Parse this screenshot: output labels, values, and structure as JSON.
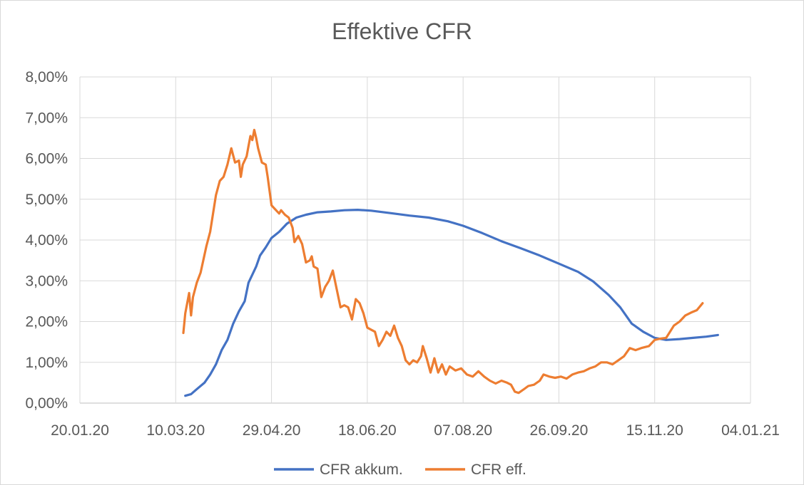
{
  "chart_data": {
    "type": "line",
    "title": "Effektive CFR",
    "xlabel": "",
    "ylabel": "",
    "x_tick_labels": [
      "20.01.20",
      "10.03.20",
      "29.04.20",
      "18.06.20",
      "07.08.20",
      "26.09.20",
      "15.11.20",
      "04.01.21"
    ],
    "x_ticks": [
      "2020-01-20",
      "2020-03-10",
      "2020-04-29",
      "2020-06-18",
      "2020-08-07",
      "2020-09-26",
      "2020-11-15",
      "2021-01-04"
    ],
    "y_tick_labels": [
      "0,00%",
      "1,00%",
      "2,00%",
      "3,00%",
      "4,00%",
      "5,00%",
      "6,00%",
      "7,00%",
      "8,00%"
    ],
    "ylim": [
      0,
      8
    ],
    "y_unit": "%",
    "grid": true,
    "legend_position": "bottom",
    "series": [
      {
        "name": "CFR akkum.",
        "color": "#4472C4",
        "points": [
          [
            "2020-03-15",
            0.18
          ],
          [
            "2020-03-18",
            0.22
          ],
          [
            "2020-03-20",
            0.3
          ],
          [
            "2020-03-22",
            0.38
          ],
          [
            "2020-03-25",
            0.5
          ],
          [
            "2020-03-28",
            0.7
          ],
          [
            "2020-03-31",
            0.95
          ],
          [
            "2020-04-03",
            1.3
          ],
          [
            "2020-04-06",
            1.55
          ],
          [
            "2020-04-09",
            1.95
          ],
          [
            "2020-04-12",
            2.25
          ],
          [
            "2020-04-15",
            2.5
          ],
          [
            "2020-04-17",
            2.95
          ],
          [
            "2020-04-19",
            3.15
          ],
          [
            "2020-04-21",
            3.35
          ],
          [
            "2020-04-23",
            3.62
          ],
          [
            "2020-04-26",
            3.82
          ],
          [
            "2020-04-29",
            4.05
          ],
          [
            "2020-05-03",
            4.2
          ],
          [
            "2020-05-07",
            4.4
          ],
          [
            "2020-05-12",
            4.55
          ],
          [
            "2020-05-17",
            4.62
          ],
          [
            "2020-05-23",
            4.68
          ],
          [
            "2020-05-30",
            4.7
          ],
          [
            "2020-06-06",
            4.73
          ],
          [
            "2020-06-13",
            4.74
          ],
          [
            "2020-06-20",
            4.72
          ],
          [
            "2020-06-30",
            4.66
          ],
          [
            "2020-07-10",
            4.6
          ],
          [
            "2020-07-20",
            4.55
          ],
          [
            "2020-07-30",
            4.46
          ],
          [
            "2020-08-07",
            4.35
          ],
          [
            "2020-08-17",
            4.17
          ],
          [
            "2020-08-27",
            3.97
          ],
          [
            "2020-09-06",
            3.8
          ],
          [
            "2020-09-16",
            3.62
          ],
          [
            "2020-09-26",
            3.42
          ],
          [
            "2020-10-06",
            3.22
          ],
          [
            "2020-10-14",
            2.98
          ],
          [
            "2020-10-22",
            2.65
          ],
          [
            "2020-10-28",
            2.35
          ],
          [
            "2020-11-03",
            1.95
          ],
          [
            "2020-11-09",
            1.75
          ],
          [
            "2020-11-15",
            1.6
          ],
          [
            "2020-11-21",
            1.55
          ],
          [
            "2020-11-28",
            1.57
          ],
          [
            "2020-12-05",
            1.6
          ],
          [
            "2020-12-12",
            1.63
          ],
          [
            "2020-12-18",
            1.67
          ]
        ]
      },
      {
        "name": "CFR eff.",
        "color": "#ED7D31",
        "points": [
          [
            "2020-03-14",
            1.72
          ],
          [
            "2020-03-15",
            2.2
          ],
          [
            "2020-03-17",
            2.7
          ],
          [
            "2020-03-18",
            2.15
          ],
          [
            "2020-03-19",
            2.6
          ],
          [
            "2020-03-21",
            2.95
          ],
          [
            "2020-03-23",
            3.2
          ],
          [
            "2020-03-26",
            3.85
          ],
          [
            "2020-03-28",
            4.2
          ],
          [
            "2020-03-31",
            5.1
          ],
          [
            "2020-04-02",
            5.45
          ],
          [
            "2020-04-04",
            5.55
          ],
          [
            "2020-04-06",
            5.85
          ],
          [
            "2020-04-08",
            6.25
          ],
          [
            "2020-04-10",
            5.9
          ],
          [
            "2020-04-12",
            5.95
          ],
          [
            "2020-04-13",
            5.55
          ],
          [
            "2020-04-14",
            5.85
          ],
          [
            "2020-04-16",
            6.05
          ],
          [
            "2020-04-17",
            6.3
          ],
          [
            "2020-04-18",
            6.55
          ],
          [
            "2020-04-19",
            6.45
          ],
          [
            "2020-04-20",
            6.7
          ],
          [
            "2020-04-21",
            6.5
          ],
          [
            "2020-04-22",
            6.25
          ],
          [
            "2020-04-24",
            5.9
          ],
          [
            "2020-04-26",
            5.85
          ],
          [
            "2020-04-27",
            5.55
          ],
          [
            "2020-04-28",
            5.2
          ],
          [
            "2020-04-29",
            4.85
          ],
          [
            "2020-05-01",
            4.75
          ],
          [
            "2020-05-03",
            4.65
          ],
          [
            "2020-05-04",
            4.73
          ],
          [
            "2020-05-06",
            4.62
          ],
          [
            "2020-05-08",
            4.55
          ],
          [
            "2020-05-10",
            4.3
          ],
          [
            "2020-05-11",
            3.95
          ],
          [
            "2020-05-13",
            4.1
          ],
          [
            "2020-05-15",
            3.9
          ],
          [
            "2020-05-17",
            3.45
          ],
          [
            "2020-05-19",
            3.5
          ],
          [
            "2020-05-20",
            3.6
          ],
          [
            "2020-05-21",
            3.35
          ],
          [
            "2020-05-23",
            3.3
          ],
          [
            "2020-05-25",
            2.6
          ],
          [
            "2020-05-27",
            2.85
          ],
          [
            "2020-05-29",
            3.0
          ],
          [
            "2020-05-31",
            3.25
          ],
          [
            "2020-06-02",
            2.8
          ],
          [
            "2020-06-04",
            2.35
          ],
          [
            "2020-06-06",
            2.4
          ],
          [
            "2020-06-08",
            2.35
          ],
          [
            "2020-06-10",
            2.05
          ],
          [
            "2020-06-12",
            2.55
          ],
          [
            "2020-06-14",
            2.45
          ],
          [
            "2020-06-16",
            2.2
          ],
          [
            "2020-06-18",
            1.85
          ],
          [
            "2020-06-20",
            1.8
          ],
          [
            "2020-06-22",
            1.75
          ],
          [
            "2020-06-24",
            1.4
          ],
          [
            "2020-06-26",
            1.55
          ],
          [
            "2020-06-28",
            1.75
          ],
          [
            "2020-06-30",
            1.65
          ],
          [
            "2020-07-02",
            1.9
          ],
          [
            "2020-07-04",
            1.6
          ],
          [
            "2020-07-06",
            1.4
          ],
          [
            "2020-07-08",
            1.05
          ],
          [
            "2020-07-10",
            0.95
          ],
          [
            "2020-07-12",
            1.05
          ],
          [
            "2020-07-14",
            1.0
          ],
          [
            "2020-07-16",
            1.15
          ],
          [
            "2020-07-17",
            1.4
          ],
          [
            "2020-07-19",
            1.1
          ],
          [
            "2020-07-21",
            0.75
          ],
          [
            "2020-07-23",
            1.1
          ],
          [
            "2020-07-25",
            0.75
          ],
          [
            "2020-07-27",
            0.95
          ],
          [
            "2020-07-29",
            0.7
          ],
          [
            "2020-07-31",
            0.9
          ],
          [
            "2020-08-03",
            0.8
          ],
          [
            "2020-08-06",
            0.85
          ],
          [
            "2020-08-09",
            0.7
          ],
          [
            "2020-08-12",
            0.65
          ],
          [
            "2020-08-15",
            0.78
          ],
          [
            "2020-08-18",
            0.65
          ],
          [
            "2020-08-21",
            0.55
          ],
          [
            "2020-08-24",
            0.48
          ],
          [
            "2020-08-27",
            0.55
          ],
          [
            "2020-08-30",
            0.5
          ],
          [
            "2020-09-01",
            0.45
          ],
          [
            "2020-09-03",
            0.28
          ],
          [
            "2020-09-05",
            0.25
          ],
          [
            "2020-09-08",
            0.35
          ],
          [
            "2020-09-10",
            0.42
          ],
          [
            "2020-09-13",
            0.45
          ],
          [
            "2020-09-16",
            0.55
          ],
          [
            "2020-09-18",
            0.7
          ],
          [
            "2020-09-21",
            0.65
          ],
          [
            "2020-09-24",
            0.62
          ],
          [
            "2020-09-27",
            0.65
          ],
          [
            "2020-09-30",
            0.6
          ],
          [
            "2020-10-03",
            0.7
          ],
          [
            "2020-10-06",
            0.75
          ],
          [
            "2020-10-09",
            0.78
          ],
          [
            "2020-10-12",
            0.85
          ],
          [
            "2020-10-15",
            0.9
          ],
          [
            "2020-10-18",
            1.0
          ],
          [
            "2020-10-21",
            1.0
          ],
          [
            "2020-10-24",
            0.95
          ],
          [
            "2020-10-27",
            1.05
          ],
          [
            "2020-10-30",
            1.15
          ],
          [
            "2020-11-02",
            1.35
          ],
          [
            "2020-11-05",
            1.3
          ],
          [
            "2020-11-08",
            1.35
          ],
          [
            "2020-11-12",
            1.4
          ],
          [
            "2020-11-15",
            1.55
          ],
          [
            "2020-11-18",
            1.58
          ],
          [
            "2020-11-21",
            1.6
          ],
          [
            "2020-11-23",
            1.75
          ],
          [
            "2020-11-25",
            1.9
          ],
          [
            "2020-11-28",
            2.0
          ],
          [
            "2020-12-01",
            2.15
          ],
          [
            "2020-12-04",
            2.22
          ],
          [
            "2020-12-07",
            2.28
          ],
          [
            "2020-12-10",
            2.45
          ]
        ]
      }
    ]
  }
}
